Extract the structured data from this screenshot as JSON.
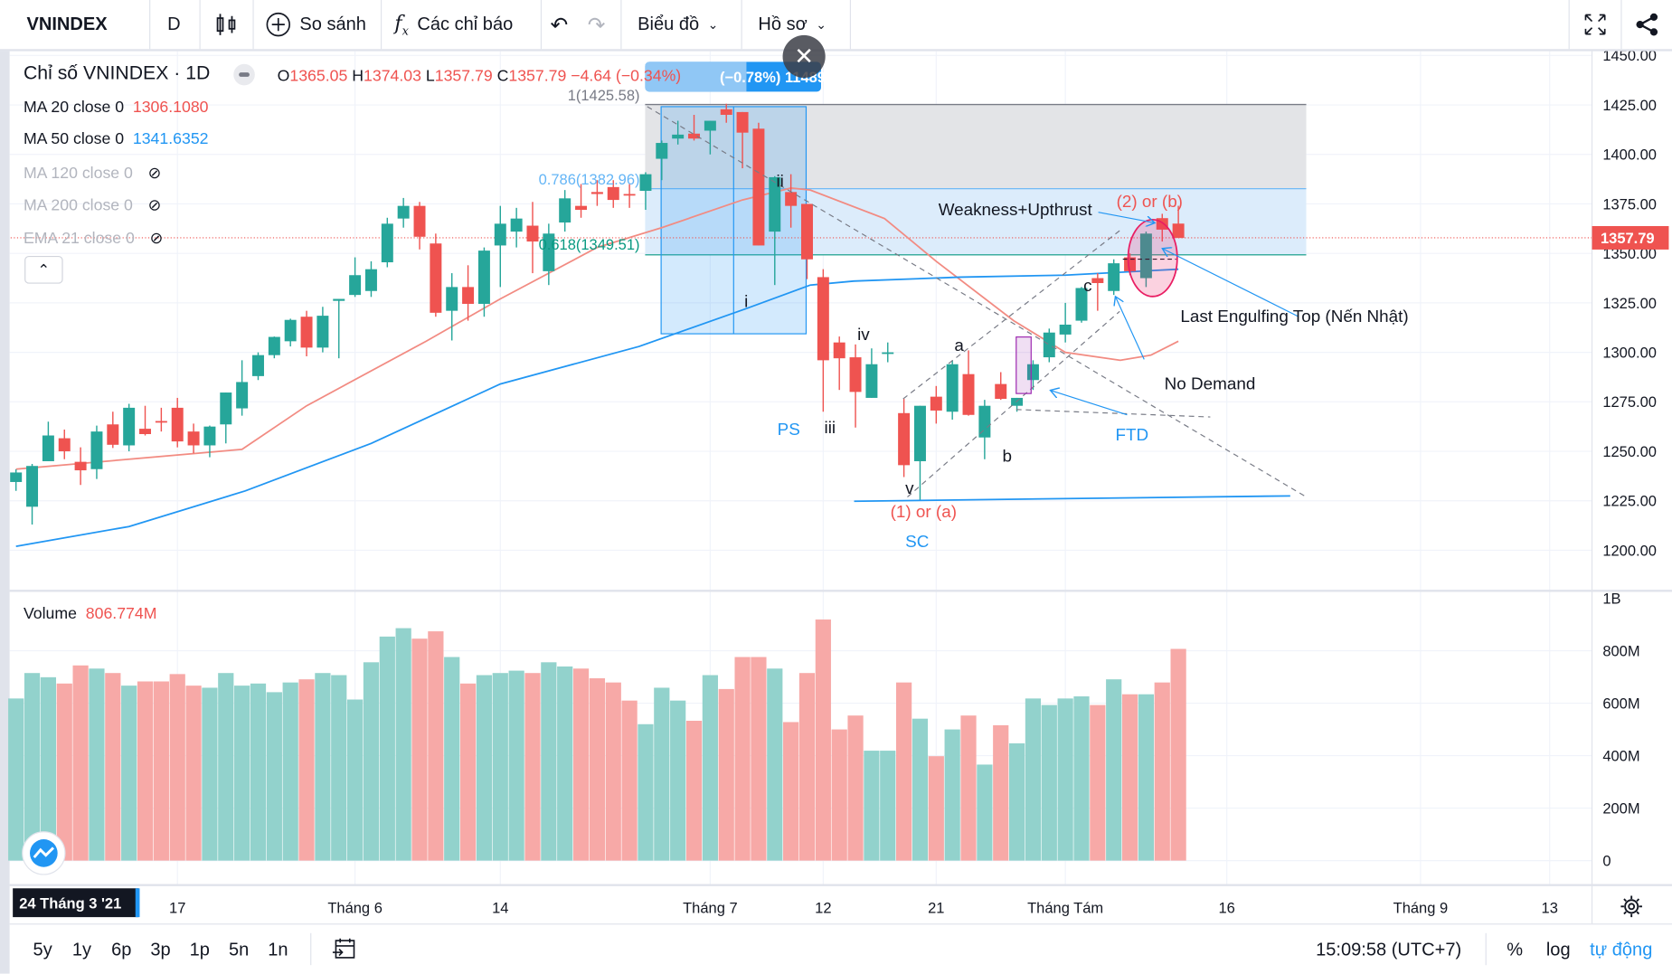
{
  "toolbar": {
    "symbol": "VNINDEX",
    "interval": "D",
    "compare": "So sánh",
    "indicators": "Các chỉ báo",
    "chart_menu": "Biểu đồ",
    "profile_menu": "Hồ sơ"
  },
  "legend": {
    "title": "Chỉ số VNINDEX · 1D",
    "open_label": "O",
    "open": "1365.05",
    "high_label": "H",
    "high": "1374.03",
    "low_label": "L",
    "low": "1357.79",
    "close_label": "C",
    "close": "1357.79",
    "change": "−4.64 (−0.34%)",
    "measure_label": "(−0.78%) 11489",
    "indicators": [
      {
        "name": "MA 20 close 0",
        "value": "1306.1080",
        "color": "#ef5350"
      },
      {
        "name": "MA 50 close 0",
        "value": "1341.6352",
        "color": "#2196f3"
      },
      {
        "name": "MA 120 close 0"
      },
      {
        "name": "MA 200 close 0"
      },
      {
        "name": "EMA 21 close 0"
      }
    ],
    "volume_name": "Volume",
    "volume_value": "806.774M"
  },
  "fib": {
    "level_1": "1(1425.58)",
    "level_0786": "0.786(1382.96)",
    "level_0618": "0.618(1349.51)"
  },
  "annotations": {
    "weakness": "Weakness+Upthrust",
    "two_or_b": "(2) or (b)",
    "last_engulfing": "Last Engulfing Top (Nến Nhật)",
    "no_demand": "No Demand",
    "ftd": "FTD",
    "a": "a",
    "b": "b",
    "c": "c",
    "v": "v",
    "one_or_a": "(1) or (a)",
    "sc": "SC",
    "ps": "PS",
    "i": "i",
    "ii": "ii",
    "iii": "iii",
    "iv": "iv"
  },
  "price_axis": {
    "ticks": [
      "1450.00",
      "1425.00",
      "1400.00",
      "1375.00",
      "1350.00",
      "1325.00",
      "1300.00",
      "1275.00",
      "1250.00",
      "1225.00",
      "1200.00"
    ],
    "last_price": "1357.79"
  },
  "volume_axis": {
    "ticks": [
      "1B",
      "800M",
      "600M",
      "400M",
      "200M",
      "0"
    ]
  },
  "time_axis": {
    "cursor_label": "24 Tháng 3 '21",
    "ticks": [
      {
        "label": "17",
        "index": 10
      },
      {
        "label": "Tháng 6",
        "index": 21
      },
      {
        "label": "14",
        "index": 30
      },
      {
        "label": "Tháng 7",
        "index": 43
      },
      {
        "label": "12",
        "index": 50
      },
      {
        "label": "21",
        "index": 57
      },
      {
        "label": "Tháng Tám",
        "index": 65
      },
      {
        "label": "16",
        "index": 75
      },
      {
        "label": "Tháng 9",
        "index": 87
      },
      {
        "label": "13",
        "index": 95
      }
    ]
  },
  "bottom_bar": {
    "ranges": [
      "5y",
      "1y",
      "6p",
      "3p",
      "1p",
      "5n",
      "1n"
    ],
    "clock": "15:09:58 (UTC+7)",
    "percent": "%",
    "log": "log",
    "auto": "tự động"
  },
  "colors": {
    "up": "#26a69a",
    "down": "#ef5350",
    "accent": "#2196f3"
  },
  "chart_data": {
    "type": "candlestick",
    "symbol": "VNINDEX",
    "interval": "1D",
    "ylim": [
      1190,
      1455
    ],
    "candles_ohlc": [
      [
        1234.5,
        1240.9,
        1230,
        1239.3
      ],
      [
        1222,
        1243.6,
        1213,
        1242.6
      ],
      [
        1245,
        1265,
        1245,
        1258
      ],
      [
        1256.6,
        1261,
        1246,
        1250
      ],
      [
        1244.7,
        1252,
        1233,
        1240.4
      ],
      [
        1241,
        1263,
        1236,
        1260
      ],
      [
        1263.6,
        1270,
        1251.7,
        1253.3
      ],
      [
        1253,
        1274,
        1250,
        1272
      ],
      [
        1261.4,
        1273,
        1258,
        1258.7
      ],
      [
        1265.3,
        1272,
        1260,
        1265
      ],
      [
        1272,
        1277,
        1252,
        1255
      ],
      [
        1260,
        1264,
        1249,
        1253
      ],
      [
        1253,
        1263,
        1247,
        1262.5
      ],
      [
        1263.6,
        1279.7,
        1254,
        1279.7
      ],
      [
        1271.7,
        1296,
        1268,
        1285
      ],
      [
        1288,
        1300,
        1286,
        1298.6
      ],
      [
        1298.6,
        1308,
        1297,
        1307.8
      ],
      [
        1305.6,
        1317,
        1303,
        1316.4
      ],
      [
        1318,
        1321,
        1298,
        1302.4
      ],
      [
        1302.4,
        1323,
        1300,
        1318.5
      ],
      [
        1326,
        1327,
        1297,
        1327
      ],
      [
        1329,
        1348,
        1328,
        1339
      ],
      [
        1331,
        1346,
        1328,
        1342
      ],
      [
        1345.5,
        1368,
        1343,
        1365
      ],
      [
        1367.6,
        1378,
        1363,
        1374
      ],
      [
        1374,
        1376,
        1352,
        1358.4
      ],
      [
        1355,
        1360,
        1318,
        1320
      ],
      [
        1321,
        1340,
        1306,
        1333
      ],
      [
        1333,
        1344,
        1316,
        1324.5
      ],
      [
        1324.5,
        1353,
        1318,
        1351.4
      ],
      [
        1354,
        1374,
        1333,
        1365
      ],
      [
        1361,
        1373,
        1353,
        1367.6
      ],
      [
        1364,
        1376,
        1340,
        1356
      ],
      [
        1341,
        1365,
        1334,
        1360
      ],
      [
        1365.6,
        1382,
        1361,
        1377.8
      ],
      [
        1374,
        1385,
        1368,
        1372
      ],
      [
        1381,
        1387,
        1374,
        1380
      ],
      [
        1383.5,
        1387,
        1373,
        1377
      ],
      [
        1380,
        1385,
        1373,
        1379.5
      ],
      [
        1381.6,
        1391,
        1372,
        1390
      ],
      [
        1397.8,
        1407,
        1387,
        1405.8
      ],
      [
        1408,
        1417,
        1405,
        1410
      ],
      [
        1410.5,
        1420,
        1407,
        1408
      ],
      [
        1412,
        1417,
        1400,
        1417
      ],
      [
        1422.8,
        1425.6,
        1416,
        1420
      ],
      [
        1421.4,
        1421.4,
        1393,
        1411
      ],
      [
        1413,
        1416,
        1354,
        1354
      ],
      [
        1361,
        1389,
        1334,
        1388.5
      ],
      [
        1381,
        1390,
        1363,
        1374
      ],
      [
        1375,
        1375,
        1337,
        1347
      ],
      [
        1338,
        1342,
        1270,
        1296
      ],
      [
        1305,
        1308,
        1281,
        1297
      ],
      [
        1297.5,
        1304,
        1262,
        1280
      ],
      [
        1277,
        1302,
        1277,
        1294
      ],
      [
        1299.6,
        1305,
        1295,
        1300
      ],
      [
        1269.3,
        1276.5,
        1237,
        1243
      ],
      [
        1245,
        1273,
        1225,
        1273
      ],
      [
        1277.6,
        1283,
        1264,
        1270.6
      ],
      [
        1270,
        1296,
        1266,
        1294
      ],
      [
        1289,
        1301,
        1268,
        1268.4
      ],
      [
        1257,
        1276,
        1246,
        1273
      ],
      [
        1284,
        1290,
        1276,
        1276.5
      ],
      [
        1273,
        1277,
        1270,
        1277
      ],
      [
        1286,
        1296,
        1281,
        1294
      ],
      [
        1297.5,
        1312,
        1295,
        1310
      ],
      [
        1309,
        1325,
        1305,
        1314
      ],
      [
        1316,
        1333,
        1315,
        1332.5
      ],
      [
        1337.5,
        1340,
        1321,
        1335
      ],
      [
        1331,
        1347,
        1329,
        1345
      ],
      [
        1348,
        1350,
        1339,
        1341
      ],
      [
        1337.5,
        1361,
        1333,
        1360
      ],
      [
        1367.8,
        1370,
        1356,
        1362
      ],
      [
        1365.05,
        1374.03,
        1357.79,
        1357.79
      ]
    ],
    "volume_millions": [
      618,
      715,
      699,
      675,
      744,
      732,
      715,
      667,
      683,
      683,
      711,
      667,
      659,
      715,
      667,
      675,
      642,
      679,
      691,
      715,
      707,
      614,
      756,
      854,
      886,
      846,
      874,
      776,
      675,
      707,
      715,
      724,
      715,
      756,
      740,
      732,
      695,
      679,
      610,
      520,
      659,
      610,
      533,
      707,
      654,
      776,
      776,
      732,
      528,
      715,
      919,
      500,
      553,
      419,
      419,
      679,
      541,
      398,
      500,
      553,
      366,
      516,
      447,
      618,
      593,
      618,
      626,
      593,
      691,
      634,
      634,
      679,
      807
    ],
    "volume_ylim": [
      0,
      1000
    ],
    "ma20": [
      [
        0,
        1241
      ],
      [
        14,
        1251
      ],
      [
        18,
        1273
      ],
      [
        25.4,
        1305.6
      ],
      [
        30,
        1327
      ],
      [
        36,
        1353
      ],
      [
        40,
        1363
      ],
      [
        45,
        1377
      ],
      [
        48,
        1383
      ],
      [
        49.2,
        1382
      ],
      [
        53.8,
        1367.6
      ],
      [
        57,
        1346
      ],
      [
        61.8,
        1316
      ],
      [
        65,
        1300
      ],
      [
        68.4,
        1296
      ],
      [
        70.3,
        1298.6
      ],
      [
        72,
        1305.6
      ]
    ],
    "ma50": [
      [
        0,
        1202
      ],
      [
        7,
        1212
      ],
      [
        14.2,
        1230
      ],
      [
        22,
        1254
      ],
      [
        30,
        1284
      ],
      [
        38.6,
        1303
      ],
      [
        45.2,
        1322
      ],
      [
        49.2,
        1334
      ],
      [
        51.9,
        1336
      ],
      [
        58.5,
        1338
      ],
      [
        65,
        1339
      ],
      [
        72,
        1342
      ]
    ]
  }
}
